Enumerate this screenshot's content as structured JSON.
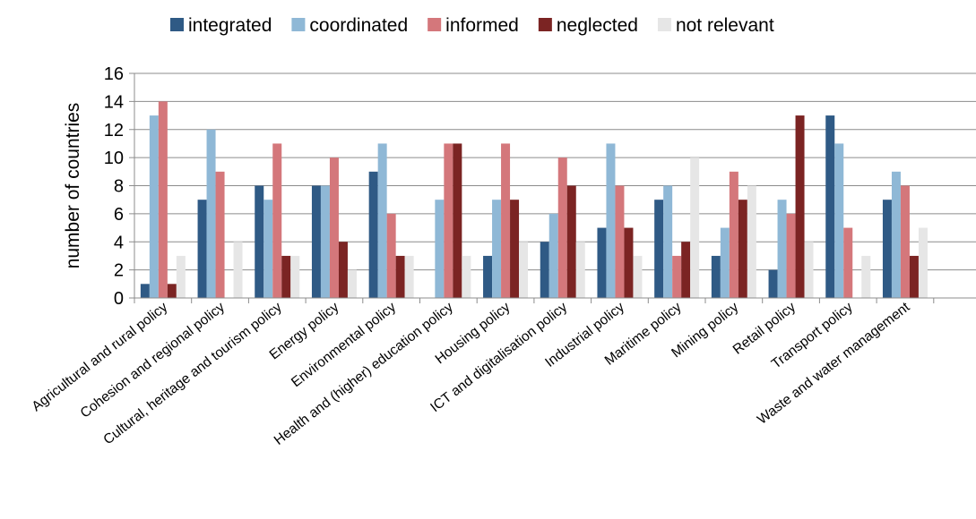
{
  "chart_data": {
    "type": "bar",
    "title": "",
    "xlabel": "",
    "ylabel": "number  of countries",
    "ylim": [
      0,
      16
    ],
    "yticks": [
      0,
      2,
      4,
      6,
      8,
      10,
      12,
      14,
      16
    ],
    "grid": "horizontal",
    "legend_position": "top",
    "categories": [
      "Agricultural and rural policy",
      "Cohesion and regional policy",
      "Cultural, heritage and tourism policy",
      "Energy policy",
      "Environmental policy",
      "Health and (higher) education policy",
      "Housing policy",
      "ICT and digitalisation policy",
      "Industrial policy",
      "Maritime policy",
      "Mining policy",
      "Retail policy",
      "Transport policy",
      "Waste and water management"
    ],
    "series": [
      {
        "name": "integrated",
        "color": "#2f5a85",
        "values": [
          1,
          7,
          8,
          8,
          9,
          0,
          3,
          4,
          5,
          7,
          3,
          2,
          13,
          7
        ]
      },
      {
        "name": "coordinated",
        "color": "#8fb8d6",
        "values": [
          13,
          12,
          7,
          8,
          11,
          7,
          7,
          6,
          11,
          8,
          5,
          7,
          11,
          9
        ]
      },
      {
        "name": "informed",
        "color": "#d4777b",
        "values": [
          14,
          9,
          11,
          10,
          6,
          11,
          11,
          10,
          8,
          3,
          9,
          6,
          5,
          8
        ]
      },
      {
        "name": "neglected",
        "color": "#7b2423",
        "values": [
          1,
          0,
          3,
          4,
          3,
          11,
          7,
          8,
          5,
          4,
          7,
          13,
          0,
          3
        ]
      },
      {
        "name": "not relevant",
        "color": "#e6e6e6",
        "values": [
          3,
          4,
          3,
          2,
          3,
          3,
          4,
          4,
          3,
          10,
          8,
          4,
          3,
          5
        ]
      }
    ]
  }
}
